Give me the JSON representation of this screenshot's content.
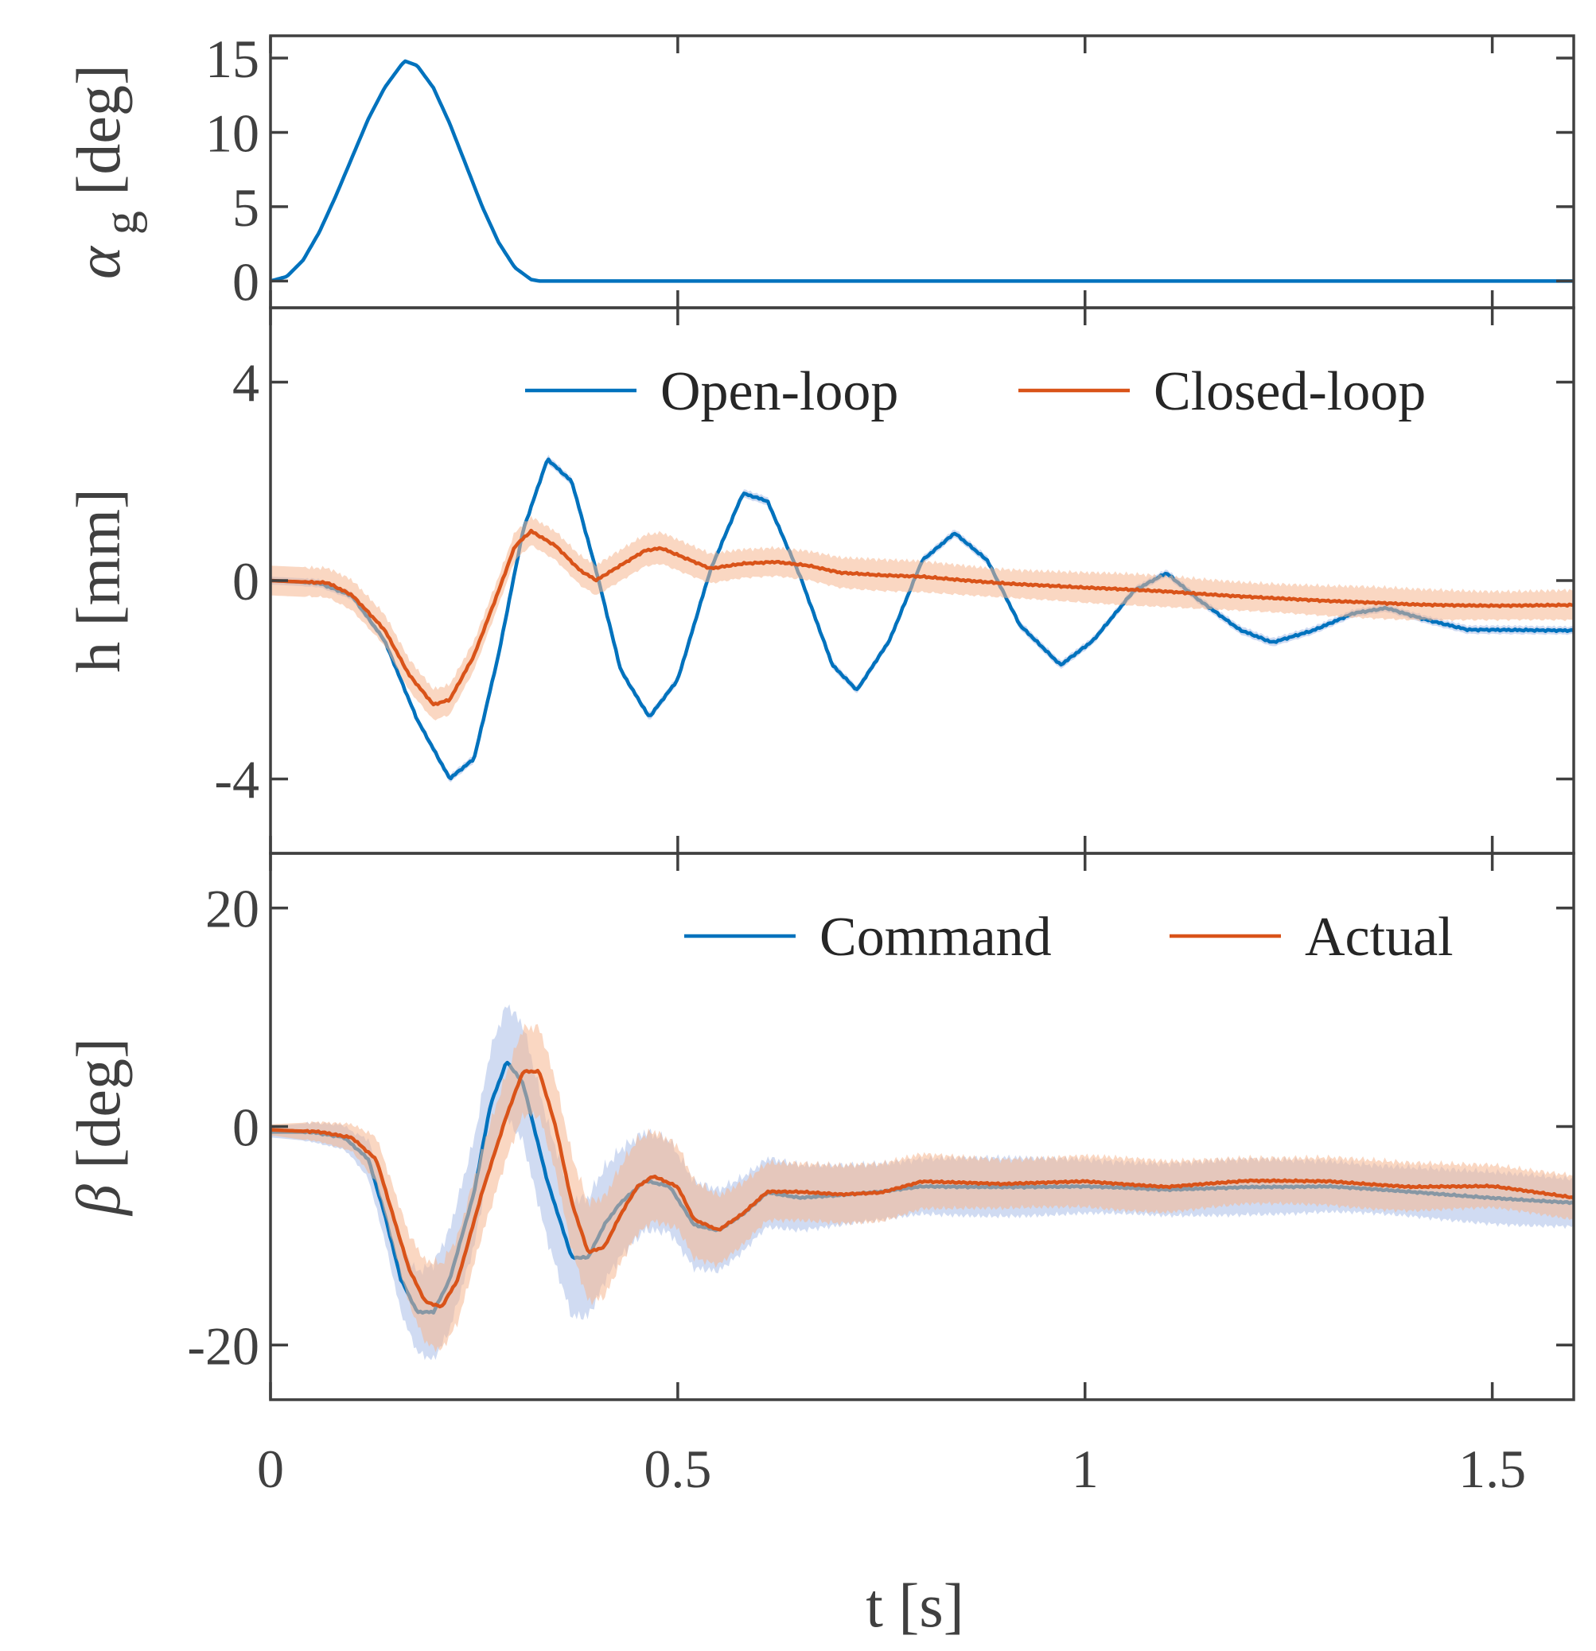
{
  "colors": {
    "blue": "#0072BD",
    "orange": "#D95319",
    "blue_band": "#a9bde8",
    "orange_band": "#f5b690",
    "axis": "#404040"
  },
  "chart_data": {
    "type": "line",
    "shared_x": {
      "label": "t [s]",
      "xlim": [
        0,
        1.6
      ],
      "ticks": [
        0,
        0.5,
        1,
        1.5
      ],
      "tick_labels": [
        "0",
        "0.5",
        "1",
        "1.5"
      ]
    },
    "panels": [
      {
        "ylabel": "α_g [deg]",
        "ylim": [
          -1.8,
          16.5
        ],
        "yticks": [
          0,
          5,
          10,
          15
        ],
        "ytick_labels": [
          "0",
          "5",
          "10",
          "15"
        ],
        "legend": [],
        "series": [
          {
            "color": "blue",
            "points": [
              [
                0,
                0
              ],
              [
                0.02,
                0.3
              ],
              [
                0.04,
                1.4
              ],
              [
                0.06,
                3.3
              ],
              [
                0.08,
                5.7
              ],
              [
                0.1,
                8.3
              ],
              [
                0.12,
                10.9
              ],
              [
                0.14,
                13.0
              ],
              [
                0.16,
                14.5
              ],
              [
                0.165,
                14.8
              ],
              [
                0.18,
                14.5
              ],
              [
                0.2,
                13.0
              ],
              [
                0.22,
                10.6
              ],
              [
                0.24,
                7.8
              ],
              [
                0.26,
                5.0
              ],
              [
                0.28,
                2.6
              ],
              [
                0.3,
                0.9
              ],
              [
                0.32,
                0.1
              ],
              [
                0.33,
                0
              ],
              [
                1.6,
                0
              ]
            ]
          }
        ]
      },
      {
        "ylabel": "h [mm]",
        "ylim": [
          -5.5,
          5.5
        ],
        "yticks": [
          -4,
          0,
          4
        ],
        "ytick_labels": [
          "-4",
          "0",
          "4"
        ],
        "legend": [
          "Open-loop",
          "Closed-loop"
        ],
        "legend_position": "top-right",
        "series": [
          {
            "name": "Open-loop",
            "color": "blue",
            "band_halfwidth": 0.08,
            "points": [
              [
                0,
                0
              ],
              [
                0.06,
                -0.05
              ],
              [
                0.1,
                -0.3
              ],
              [
                0.14,
                -1.2
              ],
              [
                0.18,
                -2.8
              ],
              [
                0.22,
                -4.0
              ],
              [
                0.25,
                -3.6
              ],
              [
                0.28,
                -1.5
              ],
              [
                0.31,
                1.0
              ],
              [
                0.34,
                2.45
              ],
              [
                0.37,
                2.0
              ],
              [
                0.4,
                0.2
              ],
              [
                0.43,
                -1.8
              ],
              [
                0.465,
                -2.75
              ],
              [
                0.5,
                -2.0
              ],
              [
                0.54,
                0.2
              ],
              [
                0.58,
                1.75
              ],
              [
                0.61,
                1.6
              ],
              [
                0.65,
                0.1
              ],
              [
                0.69,
                -1.7
              ],
              [
                0.72,
                -2.2
              ],
              [
                0.76,
                -1.2
              ],
              [
                0.8,
                0.4
              ],
              [
                0.84,
                0.95
              ],
              [
                0.88,
                0.4
              ],
              [
                0.92,
                -0.9
              ],
              [
                0.97,
                -1.7
              ],
              [
                1.01,
                -1.2
              ],
              [
                1.06,
                -0.2
              ],
              [
                1.1,
                0.15
              ],
              [
                1.14,
                -0.4
              ],
              [
                1.19,
                -1.0
              ],
              [
                1.23,
                -1.25
              ],
              [
                1.28,
                -1.0
              ],
              [
                1.33,
                -0.65
              ],
              [
                1.37,
                -0.55
              ],
              [
                1.42,
                -0.8
              ],
              [
                1.47,
                -1.0
              ],
              [
                1.6,
                -1.0
              ]
            ]
          },
          {
            "name": "Closed-loop",
            "color": "orange",
            "band_halfwidth": 0.3,
            "points": [
              [
                0,
                0
              ],
              [
                0.07,
                -0.05
              ],
              [
                0.1,
                -0.3
              ],
              [
                0.14,
                -1.0
              ],
              [
                0.17,
                -1.9
              ],
              [
                0.2,
                -2.5
              ],
              [
                0.22,
                -2.4
              ],
              [
                0.25,
                -1.5
              ],
              [
                0.28,
                -0.2
              ],
              [
                0.3,
                0.7
              ],
              [
                0.32,
                1.0
              ],
              [
                0.35,
                0.7
              ],
              [
                0.38,
                0.2
              ],
              [
                0.4,
                0.0
              ],
              [
                0.43,
                0.3
              ],
              [
                0.46,
                0.6
              ],
              [
                0.48,
                0.65
              ],
              [
                0.51,
                0.45
              ],
              [
                0.54,
                0.25
              ],
              [
                0.58,
                0.35
              ],
              [
                0.62,
                0.38
              ],
              [
                0.66,
                0.3
              ],
              [
                0.7,
                0.15
              ],
              [
                0.75,
                0.1
              ],
              [
                0.8,
                0.08
              ],
              [
                0.9,
                -0.05
              ],
              [
                1.0,
                -0.15
              ],
              [
                1.1,
                -0.22
              ],
              [
                1.2,
                -0.32
              ],
              [
                1.3,
                -0.42
              ],
              [
                1.4,
                -0.48
              ],
              [
                1.5,
                -0.5
              ],
              [
                1.6,
                -0.5
              ]
            ]
          }
        ]
      },
      {
        "ylabel": "β [deg]",
        "ylim": [
          -25,
          25
        ],
        "yticks": [
          -20,
          0,
          20
        ],
        "ytick_labels": [
          "-20",
          "0",
          "20"
        ],
        "legend": [
          "Command",
          "Actual"
        ],
        "legend_position": "top-right",
        "series": [
          {
            "name": "Command",
            "color": "blue",
            "band": [
              0.5,
              1.2,
              4.5,
              5.5,
              3.0,
              2.6,
              2.2
            ],
            "band_x": [
              0,
              0.1,
              0.2,
              0.4,
              0.6,
              0.8,
              1.6
            ],
            "points": [
              [
                0,
                -0.5
              ],
              [
                0.05,
                -0.5
              ],
              [
                0.09,
                -1.0
              ],
              [
                0.12,
                -3.0
              ],
              [
                0.14,
                -8.0
              ],
              [
                0.16,
                -14.0
              ],
              [
                0.18,
                -17.0
              ],
              [
                0.2,
                -17.0
              ],
              [
                0.22,
                -14.0
              ],
              [
                0.25,
                -6.0
              ],
              [
                0.27,
                2.0
              ],
              [
                0.29,
                6.0
              ],
              [
                0.31,
                4.0
              ],
              [
                0.34,
                -5.0
              ],
              [
                0.37,
                -12.0
              ],
              [
                0.39,
                -12.0
              ],
              [
                0.41,
                -9.0
              ],
              [
                0.43,
                -7.0
              ],
              [
                0.46,
                -5.0
              ],
              [
                0.49,
                -5.5
              ],
              [
                0.52,
                -9.0
              ],
              [
                0.55,
                -9.5
              ],
              [
                0.58,
                -8.0
              ],
              [
                0.61,
                -6.0
              ],
              [
                0.65,
                -6.5
              ],
              [
                0.7,
                -6.3
              ],
              [
                0.75,
                -6.0
              ],
              [
                0.8,
                -5.5
              ],
              [
                0.9,
                -5.5
              ],
              [
                1.0,
                -5.5
              ],
              [
                1.1,
                -5.8
              ],
              [
                1.2,
                -5.5
              ],
              [
                1.3,
                -5.5
              ],
              [
                1.4,
                -6.0
              ],
              [
                1.5,
                -6.5
              ],
              [
                1.6,
                -7.0
              ]
            ]
          },
          {
            "name": "Actual",
            "color": "orange",
            "band": [
              0.5,
              1.2,
              3.8,
              4.5,
              2.8,
              2.4,
              2.0
            ],
            "band_x": [
              0,
              0.1,
              0.2,
              0.4,
              0.6,
              0.8,
              1.6
            ],
            "points": [
              [
                0,
                -0.3
              ],
              [
                0.06,
                -0.5
              ],
              [
                0.1,
                -1.0
              ],
              [
                0.13,
                -3.0
              ],
              [
                0.15,
                -8.0
              ],
              [
                0.17,
                -13.0
              ],
              [
                0.19,
                -16.0
              ],
              [
                0.21,
                -16.5
              ],
              [
                0.23,
                -14.0
              ],
              [
                0.26,
                -6.0
              ],
              [
                0.29,
                1.0
              ],
              [
                0.31,
                5.0
              ],
              [
                0.33,
                5.0
              ],
              [
                0.35,
                0.0
              ],
              [
                0.37,
                -7.0
              ],
              [
                0.39,
                -11.5
              ],
              [
                0.41,
                -11.0
              ],
              [
                0.43,
                -8.0
              ],
              [
                0.45,
                -5.5
              ],
              [
                0.47,
                -4.5
              ],
              [
                0.5,
                -5.5
              ],
              [
                0.52,
                -8.5
              ],
              [
                0.55,
                -9.5
              ],
              [
                0.58,
                -8.0
              ],
              [
                0.61,
                -6.0
              ],
              [
                0.65,
                -6.0
              ],
              [
                0.7,
                -6.2
              ],
              [
                0.75,
                -6.0
              ],
              [
                0.8,
                -5.0
              ],
              [
                0.9,
                -5.3
              ],
              [
                1.0,
                -5.0
              ],
              [
                1.1,
                -5.5
              ],
              [
                1.2,
                -5.0
              ],
              [
                1.3,
                -5.0
              ],
              [
                1.4,
                -5.5
              ],
              [
                1.5,
                -5.5
              ],
              [
                1.6,
                -6.5
              ]
            ]
          }
        ]
      }
    ]
  }
}
